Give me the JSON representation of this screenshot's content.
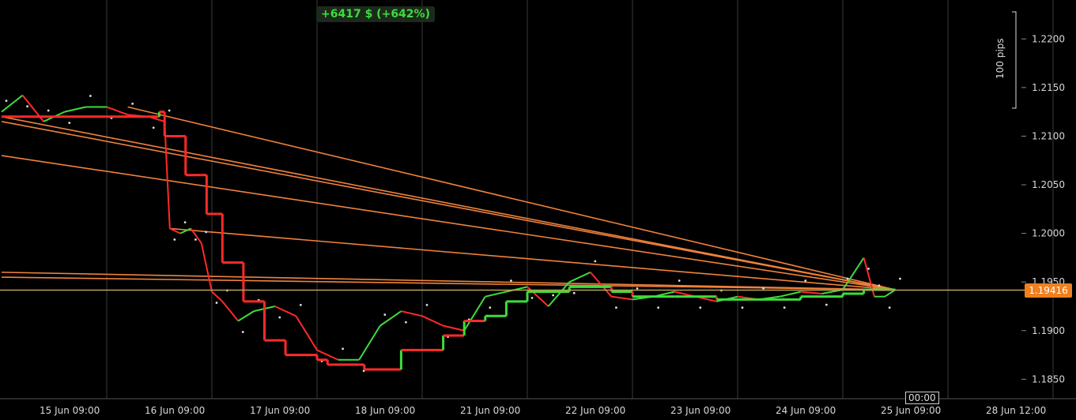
{
  "profit_badge": "+6417 $ (+642%)",
  "current_price_label": "1.19416",
  "cursor_label": "00:00",
  "pips_label": "100 pips",
  "colors": {
    "background": "#000000",
    "grid": "#3a3a3a",
    "up_candle": "#3ddc3d",
    "down_candle": "#ff2a2a",
    "trendline": "#f0823c",
    "price_line": "#b7a25a",
    "price_tag": "#f07f1e"
  },
  "chart_data": {
    "type": "line",
    "title": "",
    "xlabel": "",
    "ylabel": "",
    "x_ticks": [
      "15 Jun 09:00",
      "16 Jun 09:00",
      "17 Jun 09:00",
      "18 Jun 09:00",
      "21 Jun 09:00",
      "22 Jun 09:00",
      "23 Jun 09:00",
      "24 Jun 09:00",
      "25 Jun 09:00",
      "28 Jun 12:00"
    ],
    "y_ticks": [
      "1.2200",
      "1.2150",
      "1.2100",
      "1.2050",
      "1.2000",
      "1.1950",
      "1.1900",
      "1.1850"
    ],
    "ylim": [
      1.183,
      1.224
    ],
    "current_price": 1.19416,
    "grid": true,
    "series": [
      {
        "name": "",
        "role": "price",
        "x": [
          0,
          0.2,
          0.4,
          0.6,
          0.8,
          1.0,
          1.2,
          1.4,
          1.55,
          1.6,
          1.7,
          1.8,
          1.9,
          2.0,
          2.1,
          2.25,
          2.4,
          2.6,
          2.8,
          3.0,
          3.2,
          3.4,
          3.6,
          3.8,
          4.0,
          4.2,
          4.4,
          4.6,
          4.8,
          5.0,
          5.2,
          5.4,
          5.6,
          5.8,
          6.0,
          6.2,
          6.4,
          6.6,
          6.8,
          7.0,
          7.2,
          7.4,
          7.6,
          7.8,
          8.0,
          8.2,
          8.3,
          8.4,
          8.5
        ],
        "y": [
          1.2125,
          1.2142,
          1.2115,
          1.2125,
          1.213,
          1.213,
          1.2122,
          1.212,
          1.2115,
          1.2005,
          1.2,
          1.2005,
          1.199,
          1.194,
          1.193,
          1.191,
          1.192,
          1.1925,
          1.1915,
          1.188,
          1.187,
          1.187,
          1.1905,
          1.192,
          1.1915,
          1.1905,
          1.19,
          1.1935,
          1.194,
          1.1945,
          1.1925,
          1.195,
          1.196,
          1.1935,
          1.1932,
          1.1935,
          1.194,
          1.1935,
          1.193,
          1.1935,
          1.1932,
          1.1935,
          1.194,
          1.1938,
          1.1942,
          1.1975,
          1.1935,
          1.1935,
          1.1942
        ]
      },
      {
        "name": "",
        "role": "supertrend",
        "x": [
          0,
          1.5,
          1.55,
          1.7,
          1.75,
          1.9,
          1.95,
          2.05,
          2.1,
          2.2,
          2.3,
          2.4,
          2.5,
          2.7,
          3.0,
          3.1,
          3.4,
          3.45,
          3.8,
          4.2,
          4.4,
          4.6,
          4.8,
          5.0,
          5.4,
          5.8,
          6.0,
          6.4,
          6.8,
          7.2,
          7.6,
          8.0,
          8.2,
          8.5
        ],
        "y": [
          1.212,
          1.2125,
          1.21,
          1.21,
          1.206,
          1.206,
          1.202,
          1.202,
          1.197,
          1.197,
          1.193,
          1.193,
          1.189,
          1.1875,
          1.187,
          1.1865,
          1.1865,
          1.186,
          1.188,
          1.1895,
          1.191,
          1.1915,
          1.193,
          1.194,
          1.1945,
          1.194,
          1.1935,
          1.1935,
          1.1932,
          1.1932,
          1.1935,
          1.1938,
          1.1942,
          1.1942
        ]
      }
    ],
    "trendlines": [
      {
        "from": [
          0,
          1.212
        ],
        "to": [
          8.5,
          1.1942
        ]
      },
      {
        "from": [
          0,
          1.2115
        ],
        "to": [
          8.5,
          1.1942
        ]
      },
      {
        "from": [
          0,
          1.208
        ],
        "to": [
          8.5,
          1.1942
        ]
      },
      {
        "from": [
          1.2,
          1.213
        ],
        "to": [
          8.5,
          1.1942
        ]
      },
      {
        "from": [
          1.6,
          1.2005
        ],
        "to": [
          8.5,
          1.1942
        ]
      },
      {
        "from": [
          0,
          1.196
        ],
        "to": [
          8.5,
          1.1942
        ]
      },
      {
        "from": [
          0,
          1.1955
        ],
        "to": [
          8.5,
          1.1942
        ]
      }
    ]
  }
}
